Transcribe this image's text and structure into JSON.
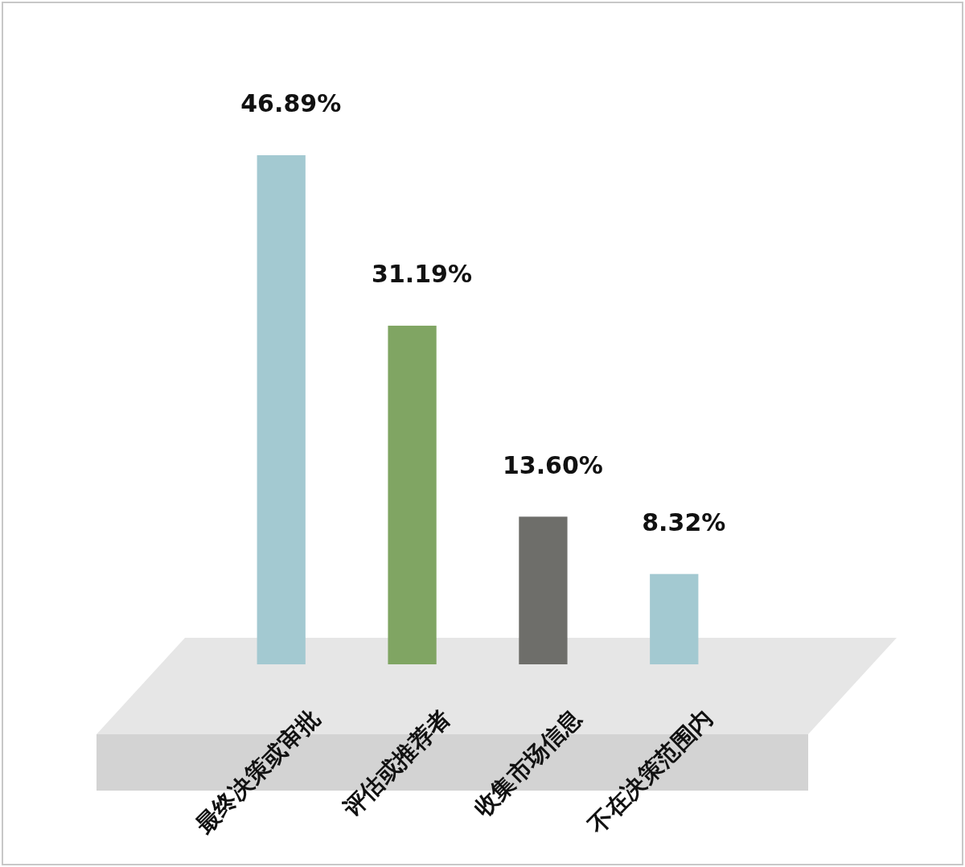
{
  "chart_data": {
    "type": "bar",
    "categories": [
      "最终决策或审批",
      "评估或推荐者",
      "收集市场信息",
      "不在决策范围内"
    ],
    "values": [
      46.89,
      31.19,
      13.6,
      8.32
    ],
    "colors": [
      "#a3c9d1",
      "#80a563",
      "#6e6e6a",
      "#a3c9d1"
    ],
    "value_labels": [
      "46.89%",
      "31.19%",
      "13.60%",
      "8.32%"
    ]
  }
}
